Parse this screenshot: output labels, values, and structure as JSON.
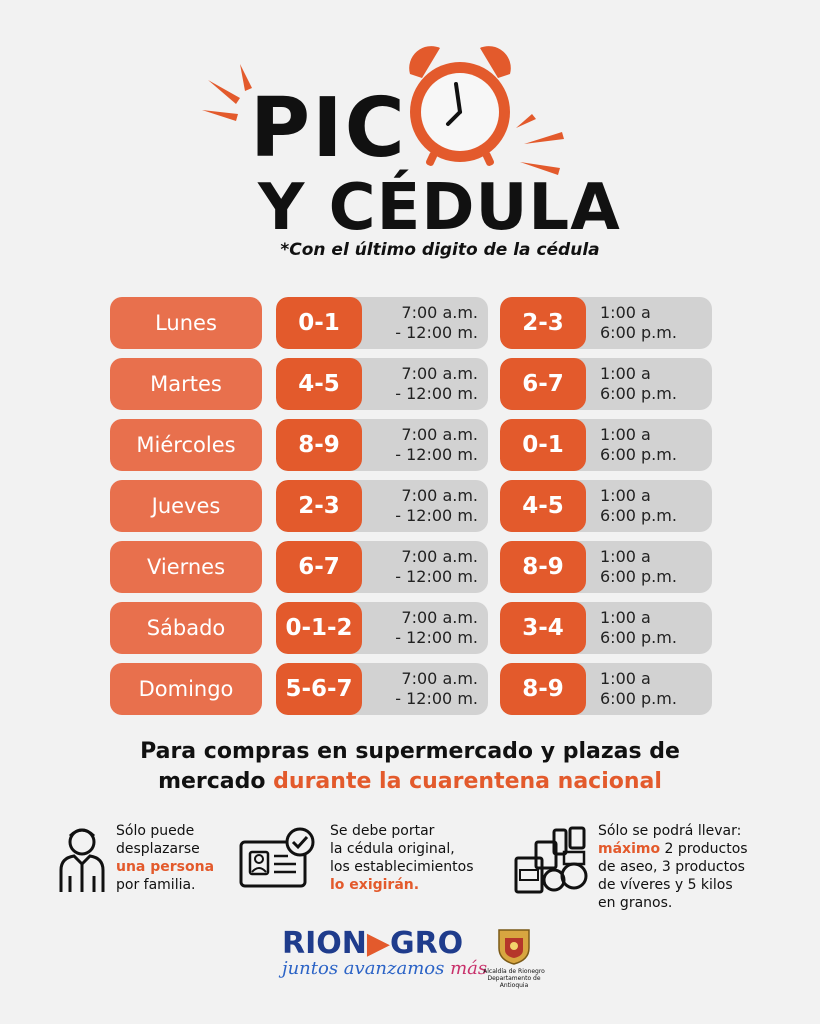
{
  "title": {
    "line1": "PIC",
    "line2": "Y CÉDULA",
    "subtitle": "*Con el último digito de la cédula"
  },
  "schedule": [
    {
      "day": "Lunes",
      "am_digits": "0-1",
      "am_time_1": "7:00 a.m.",
      "am_time_2": "- 12:00 m.",
      "pm_digits": "2-3",
      "pm_time_1": "1:00 a",
      "pm_time_2": "6:00 p.m."
    },
    {
      "day": "Martes",
      "am_digits": "4-5",
      "am_time_1": "7:00 a.m.",
      "am_time_2": "- 12:00 m.",
      "pm_digits": "6-7",
      "pm_time_1": "1:00 a",
      "pm_time_2": "6:00 p.m."
    },
    {
      "day": "Miércoles",
      "am_digits": "8-9",
      "am_time_1": "7:00 a.m.",
      "am_time_2": "- 12:00 m.",
      "pm_digits": "0-1",
      "pm_time_1": "1:00 a",
      "pm_time_2": "6:00 p.m."
    },
    {
      "day": "Jueves",
      "am_digits": "2-3",
      "am_time_1": "7:00 a.m.",
      "am_time_2": "- 12:00 m.",
      "pm_digits": "4-5",
      "pm_time_1": "1:00 a",
      "pm_time_2": "6:00 p.m."
    },
    {
      "day": "Viernes",
      "am_digits": "6-7",
      "am_time_1": "7:00 a.m.",
      "am_time_2": "- 12:00 m.",
      "pm_digits": "8-9",
      "pm_time_1": "1:00 a",
      "pm_time_2": "6:00 p.m."
    },
    {
      "day": "Sábado",
      "am_digits": "0-1-2",
      "am_time_1": "7:00 a.m.",
      "am_time_2": "- 12:00 m.",
      "pm_digits": "3-4",
      "pm_time_1": "1:00 a",
      "pm_time_2": "6:00 p.m."
    },
    {
      "day": "Domingo",
      "am_digits": "5-6-7",
      "am_time_1": "7:00 a.m.",
      "am_time_2": "- 12:00 m.",
      "pm_digits": "8-9",
      "pm_time_1": "1:00 a",
      "pm_time_2": "6:00 p.m."
    }
  ],
  "note": {
    "line1": "Para compras en supermercado y plazas de",
    "line2_plain": "mercado ",
    "line2_highlight": "durante la cuarentena nacional"
  },
  "info": {
    "person": {
      "l1": "Sólo puede",
      "l2": "desplazarse",
      "l3_hl": "una persona",
      "l4": "por familia.",
      "icon": "person-icon"
    },
    "id": {
      "l1": "Se debe portar",
      "l2": "la cédula original,",
      "l3": "los establecimientos",
      "l4_hl": "lo exigirán.",
      "icon": "id-card-icon"
    },
    "goods": {
      "l1": "Sólo se podrá llevar:",
      "l2_hl": "máximo",
      "l2": " 2 productos",
      "l3": "de aseo, 3 productos",
      "l4": "de víveres y 5 kilos",
      "l5": "en granos.",
      "icon": "groceries-icon"
    }
  },
  "footer": {
    "logo_a": "RION",
    "logo_b": "GRO",
    "slogan": "juntos avanzamos ",
    "slogan_mas": "más",
    "alcaldia_1": "Alcaldía de Rionegro",
    "alcaldia_2": "Departamento de Antioquia"
  },
  "colors": {
    "accent": "#e35a2c",
    "day_bg": "#e8704d",
    "slot_bg": "#d2d2d2",
    "brand_blue": "#1f3c8c"
  }
}
